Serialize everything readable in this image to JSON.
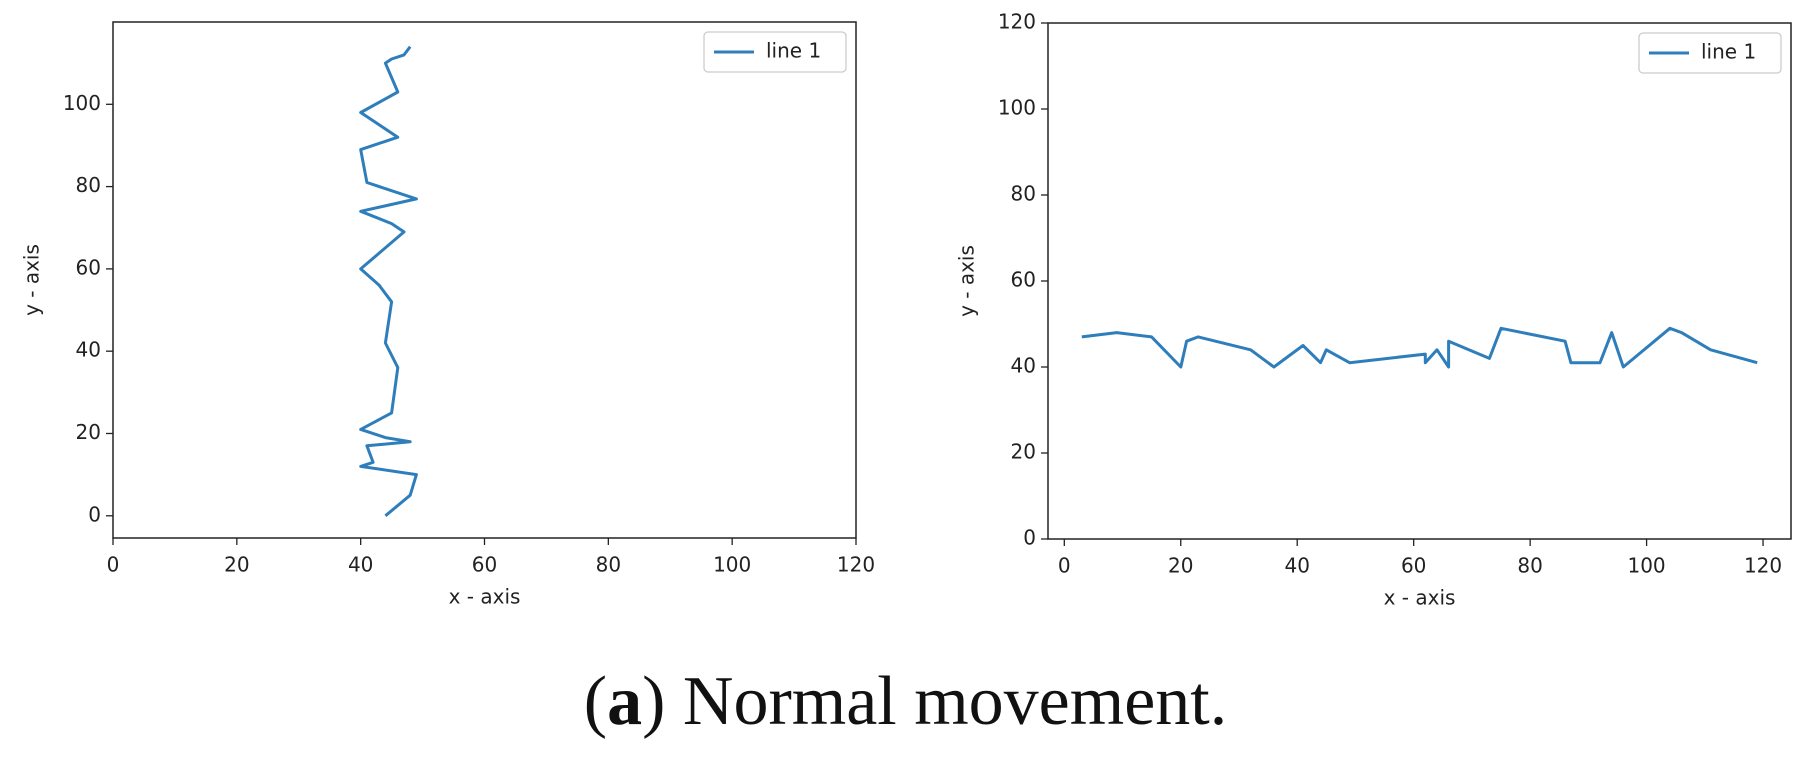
{
  "chart_data": [
    {
      "type": "line",
      "xlabel": "x - axis",
      "ylabel": "y - axis",
      "x": [
        44,
        48,
        49,
        40,
        42,
        41,
        48,
        44,
        40,
        45,
        46,
        44,
        45,
        43,
        40,
        47,
        45,
        40,
        49,
        41,
        40,
        46,
        40,
        46,
        44,
        45,
        47,
        48
      ],
      "series": [
        {
          "name": "line 1",
          "color": "#2f7ebc",
          "values": [
            0,
            5,
            10,
            12,
            13,
            17,
            18,
            19,
            21,
            25,
            36,
            42,
            52,
            56,
            60,
            69,
            71,
            74,
            77,
            81,
            89,
            92,
            98,
            103,
            110,
            111,
            112,
            114
          ]
        }
      ],
      "xlim": [
        0,
        120
      ],
      "ylim": [
        -5.4,
        120
      ],
      "xticks": [
        0,
        20,
        40,
        60,
        80,
        100,
        120
      ],
      "yticks": [
        0,
        20,
        40,
        60,
        80,
        100
      ],
      "legend": "upper right"
    },
    {
      "type": "line",
      "xlabel": "x - axis",
      "ylabel": "y - axis",
      "x": [
        3,
        9,
        15,
        20,
        21,
        23,
        32,
        36,
        41,
        44,
        45,
        49,
        62,
        62,
        64,
        66,
        66,
        73,
        75,
        86,
        87,
        92,
        94,
        96,
        104,
        106,
        111,
        119
      ],
      "series": [
        {
          "name": "line 1",
          "color": "#2f7ebc",
          "values": [
            47,
            48,
            47,
            40,
            46,
            47,
            44,
            40,
            45,
            41,
            44,
            41,
            43,
            41,
            44,
            40,
            46,
            42,
            49,
            46,
            41,
            41,
            48,
            40,
            49,
            48,
            44,
            41
          ]
        }
      ],
      "xlim": [
        -2.8,
        124.8
      ],
      "ylim": [
        0,
        120
      ],
      "xticks": [
        0,
        20,
        40,
        60,
        80,
        100,
        120
      ],
      "yticks": [
        0,
        20,
        40,
        60,
        80,
        100,
        120
      ],
      "legend": "upper right"
    }
  ],
  "caption": {
    "open": "(",
    "label": "a",
    "text": ") Normal movement."
  }
}
